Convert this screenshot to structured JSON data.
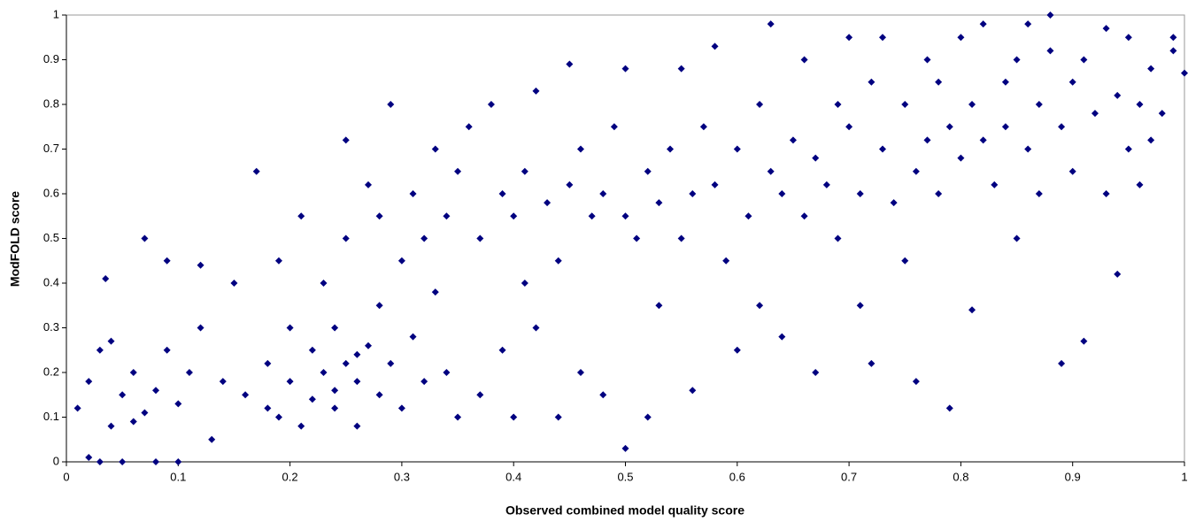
{
  "chart_data": {
    "type": "scatter",
    "x_label": "Observed combined model quality score",
    "y_label": "ModFOLD score",
    "color": "#000080",
    "xlim": [
      0,
      1
    ],
    "ylim": [
      0,
      1
    ],
    "xticks": [
      0,
      0.1,
      0.2,
      0.3,
      0.4,
      0.5,
      0.6,
      0.7,
      0.8,
      0.9,
      1
    ],
    "yticks": [
      0,
      0.1,
      0.2,
      0.3,
      0.4,
      0.5,
      0.6,
      0.7,
      0.8,
      0.9,
      1
    ],
    "x": [
      0.01,
      0.02,
      0.03,
      0.035,
      0.04,
      0.05,
      0.05,
      0.06,
      0.07,
      0.07,
      0.08,
      0.08,
      0.09,
      0.09,
      0.1,
      0.1,
      0.11,
      0.12,
      0.12,
      0.13,
      0.14,
      0.15,
      0.02,
      0.03,
      0.06,
      0.04,
      0.16,
      0.17,
      0.18,
      0.19,
      0.2,
      0.2,
      0.21,
      0.22,
      0.22,
      0.23,
      0.23,
      0.24,
      0.24,
      0.25,
      0.25,
      0.25,
      0.26,
      0.26,
      0.27,
      0.27,
      0.28,
      0.28,
      0.29,
      0.29,
      0.3,
      0.3,
      0.31,
      0.31,
      0.32,
      0.32,
      0.33,
      0.33,
      0.34,
      0.34,
      0.35,
      0.35,
      0.21,
      0.19,
      0.18,
      0.24,
      0.26,
      0.28,
      0.36,
      0.37,
      0.37,
      0.38,
      0.39,
      0.4,
      0.4,
      0.41,
      0.42,
      0.42,
      0.43,
      0.44,
      0.45,
      0.45,
      0.46,
      0.46,
      0.47,
      0.48,
      0.48,
      0.49,
      0.5,
      0.5,
      0.5,
      0.51,
      0.52,
      0.52,
      0.53,
      0.53,
      0.54,
      0.55,
      0.55,
      0.56,
      0.56,
      0.57,
      0.58,
      0.58,
      0.59,
      0.6,
      0.6,
      0.44,
      0.41,
      0.39,
      0.61,
      0.62,
      0.62,
      0.63,
      0.63,
      0.64,
      0.64,
      0.65,
      0.66,
      0.66,
      0.67,
      0.67,
      0.68,
      0.69,
      0.69,
      0.7,
      0.7,
      0.71,
      0.71,
      0.72,
      0.72,
      0.73,
      0.73,
      0.74,
      0.75,
      0.75,
      0.76,
      0.76,
      0.77,
      0.77,
      0.78,
      0.78,
      0.79,
      0.79,
      0.8,
      0.8,
      0.81,
      0.81,
      0.82,
      0.82,
      0.83,
      0.84,
      0.84,
      0.85,
      0.85,
      0.86,
      0.86,
      0.87,
      0.87,
      0.88,
      0.88,
      0.89,
      0.89,
      0.9,
      0.9,
      0.91,
      0.91,
      0.92,
      0.93,
      0.93,
      0.94,
      0.94,
      0.95,
      0.95,
      0.96,
      0.96,
      0.97,
      0.98,
      0.99,
      0.99,
      1,
      0.97
    ],
    "values": [
      0.12,
      0.18,
      0.25,
      0.41,
      0.08,
      0.15,
      0,
      0.2,
      0.11,
      0.5,
      0.16,
      0,
      0.25,
      0.45,
      0.13,
      0,
      0.2,
      0.3,
      0.44,
      0.05,
      0.18,
      0.4,
      0.01,
      0,
      0.09,
      0.27,
      0.15,
      0.65,
      0.22,
      0.1,
      0.18,
      0.3,
      0.55,
      0.14,
      0.25,
      0.2,
      0.4,
      0.12,
      0.3,
      0.22,
      0.72,
      0.5,
      0.18,
      0.08,
      0.26,
      0.62,
      0.15,
      0.35,
      0.8,
      0.22,
      0.45,
      0.12,
      0.6,
      0.28,
      0.5,
      0.18,
      0.7,
      0.38,
      0.55,
      0.2,
      0.65,
      0.1,
      0.08,
      0.45,
      0.12,
      0.16,
      0.24,
      0.55,
      0.75,
      0.5,
      0.15,
      0.8,
      0.6,
      0.55,
      0.1,
      0.65,
      0.83,
      0.3,
      0.58,
      0.45,
      0.62,
      0.89,
      0.7,
      0.2,
      0.55,
      0.6,
      0.15,
      0.75,
      0.88,
      0.55,
      0.03,
      0.5,
      0.65,
      0.1,
      0.58,
      0.35,
      0.7,
      0.5,
      0.88,
      0.6,
      0.16,
      0.75,
      0.62,
      0.93,
      0.45,
      0.7,
      0.25,
      0.1,
      0.4,
      0.25,
      0.55,
      0.8,
      0.35,
      0.65,
      0.98,
      0.6,
      0.28,
      0.72,
      0.55,
      0.9,
      0.68,
      0.2,
      0.62,
      0.8,
      0.5,
      0.75,
      0.95,
      0.6,
      0.35,
      0.85,
      0.22,
      0.7,
      0.95,
      0.58,
      0.8,
      0.45,
      0.65,
      0.18,
      0.9,
      0.72,
      0.6,
      0.85,
      0.75,
      0.12,
      0.68,
      0.95,
      0.8,
      0.34,
      0.72,
      0.98,
      0.62,
      0.85,
      0.75,
      0.9,
      0.5,
      0.7,
      0.98,
      0.8,
      0.6,
      0.92,
      1,
      0.75,
      0.22,
      0.85,
      0.65,
      0.9,
      0.27,
      0.78,
      0.97,
      0.6,
      0.42,
      0.82,
      0.7,
      0.95,
      0.62,
      0.8,
      0.88,
      0.78,
      0.92,
      0.95,
      0.87,
      0.72
    ]
  }
}
